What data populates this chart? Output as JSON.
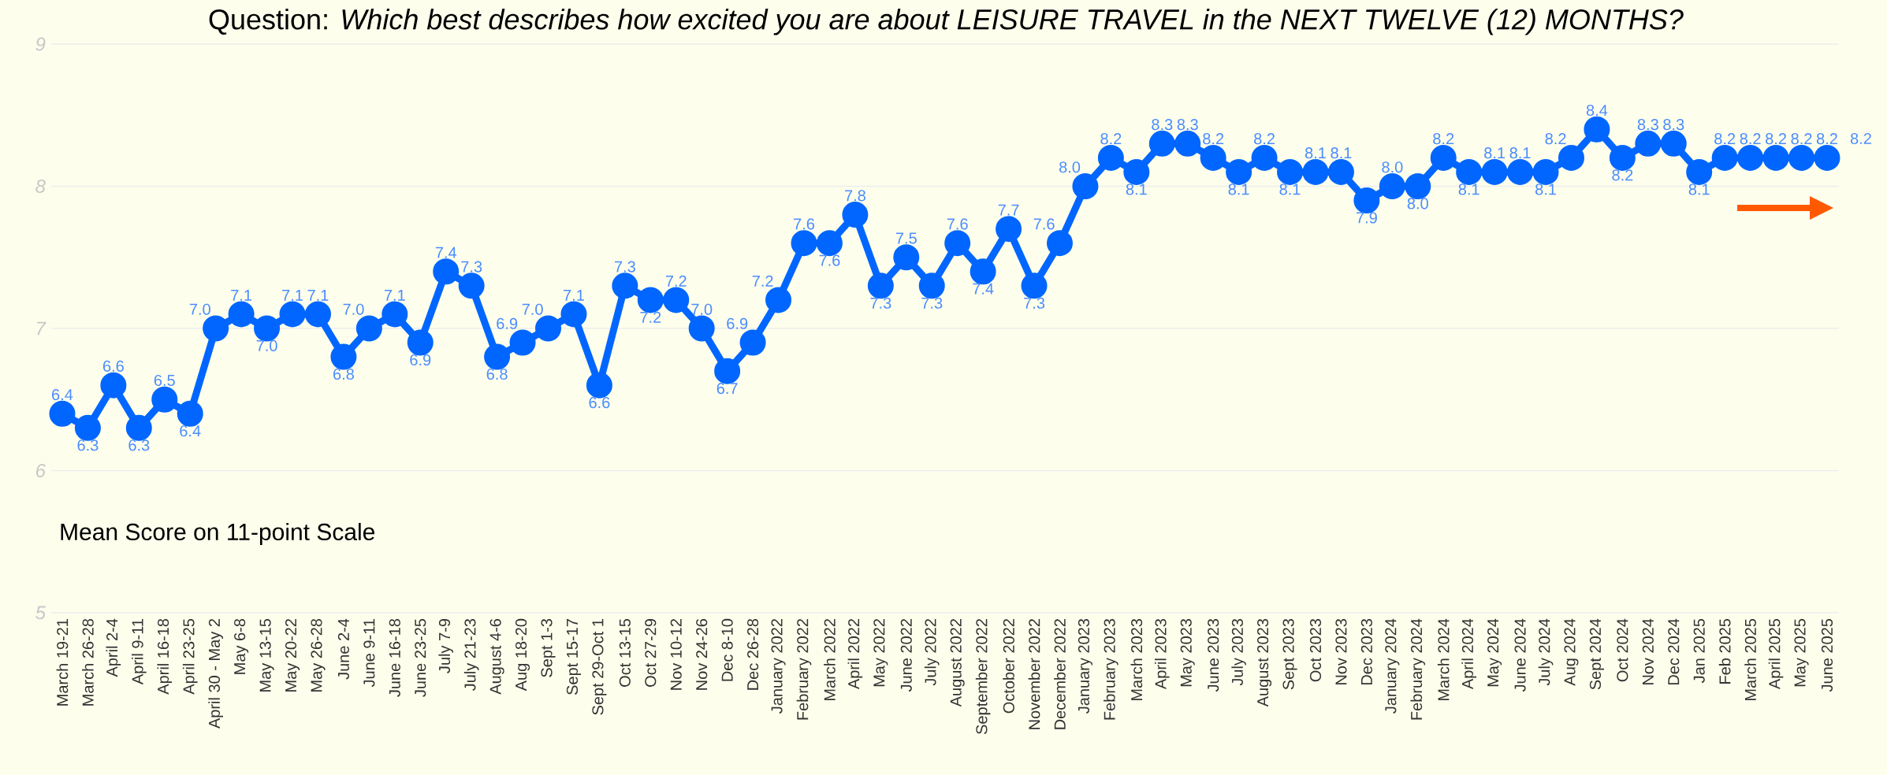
{
  "chart_data": {
    "type": "line",
    "title": "Question: *Which best describes how excited you are about LEISURE TRAVEL in the NEXT TWELVE (12) MONTHS?*",
    "annotations": [
      "Mean Score on 11-point Scale",
      "8.2"
    ],
    "categories": [
      "March 19-21",
      "March 26-28",
      "April 2-4",
      "April 9-11",
      "April 16-18",
      "April 23-25",
      "April 30 - May 2",
      "May 6-8",
      "May 13-15",
      "May 20-22",
      "May 26-28",
      "June 2-4",
      "June 9-11",
      "June 16-18",
      "June 23-25",
      "July 7-9",
      "July 21-23",
      "August 4-6",
      "Aug 18-20",
      "Sept 1-3",
      "Sept 15-17",
      "Sept 29-Oct 1",
      "Oct 13-15",
      "Oct 27-29",
      "Nov 10-12",
      "Nov 24-26",
      "Dec 8-10",
      "Dec 26-28",
      "January 2022",
      "February 2022",
      "March 2022",
      "April 2022",
      "May 2022",
      "June 2022",
      "July 2022",
      "August 2022",
      "September 2022",
      "October 2022",
      "November 2022",
      "December 2022",
      "January 2023",
      "February 2023",
      "March 2023",
      "April 2023",
      "May 2023",
      "June 2023",
      "July 2023",
      "August 2023",
      "Sept 2023",
      "Oct 2023",
      "Nov 2023",
      "Dec 2023",
      "January 2024",
      "February 2024",
      "March 2024",
      "April 2024",
      "May 2024",
      "June 2024",
      "July 2024",
      "Aug 2024",
      "Sept 2024",
      "Oct 2024",
      "Nov 2024",
      "Dec 2024",
      "Jan 2025",
      "Feb 2025",
      "March 2025",
      "April 2025",
      "May 2025",
      "June 2025"
    ],
    "values": [
      6.4,
      6.3,
      6.6,
      6.3,
      6.5,
      6.4,
      7.0,
      7.1,
      7.0,
      7.1,
      7.1,
      6.8,
      7.0,
      7.1,
      6.9,
      7.4,
      7.3,
      6.8,
      6.9,
      7.0,
      7.1,
      6.6,
      7.3,
      7.2,
      7.2,
      7.0,
      6.7,
      6.9,
      7.2,
      7.6,
      7.6,
      7.8,
      7.3,
      7.5,
      7.3,
      7.6,
      7.4,
      7.7,
      7.3,
      7.6,
      8.0,
      8.2,
      8.1,
      8.3,
      8.3,
      8.2,
      8.1,
      8.2,
      8.1,
      8.1,
      8.1,
      7.9,
      8.0,
      8.0,
      8.2,
      8.1,
      8.1,
      8.1,
      8.1,
      8.2,
      8.4,
      8.2,
      8.3,
      8.3,
      8.1,
      8.2,
      8.2,
      8.2,
      8.2,
      8.2
    ],
    "color": "#0066ff",
    "ylim": [
      5,
      9
    ],
    "yticks": [
      5,
      6,
      7,
      8,
      9
    ],
    "value_labels": [
      "6.4",
      "6.3",
      "6.6",
      "6.3",
      "6.5",
      "6.4",
      "7.0",
      "7.1",
      "7.0",
      "7.1",
      "7.1",
      "6.8",
      "7.0",
      "7.1",
      "6.9",
      "7.4",
      "7.3",
      "6.8",
      "6.9",
      "7.0",
      "7.1",
      "6.6",
      "7.3",
      "7.2",
      "7.2",
      "7.0",
      "6.7",
      "6.9",
      "7.2",
      "7.6",
      "7.6",
      "7.8",
      "7.3",
      "7.5",
      "7.3",
      "7.6",
      "7.4",
      "7.7",
      "7.3",
      "7.6",
      "8.0",
      "8.2",
      "8.1",
      "8.3",
      "8.3",
      "8.2",
      "8.1",
      "8.2",
      "8.1",
      "8.1",
      "8.1",
      "7.9",
      "8.0",
      "8.0",
      "8.2",
      "8.1",
      "8.1",
      "8.1",
      "8.1",
      "8.2",
      "8.4",
      "8.2",
      "8.3",
      "8.3",
      "8.1",
      "8.2",
      "8.2",
      "8.2",
      "8.2",
      "8.2"
    ],
    "grid": "y",
    "marker": "circle",
    "line_style": "solid"
  }
}
